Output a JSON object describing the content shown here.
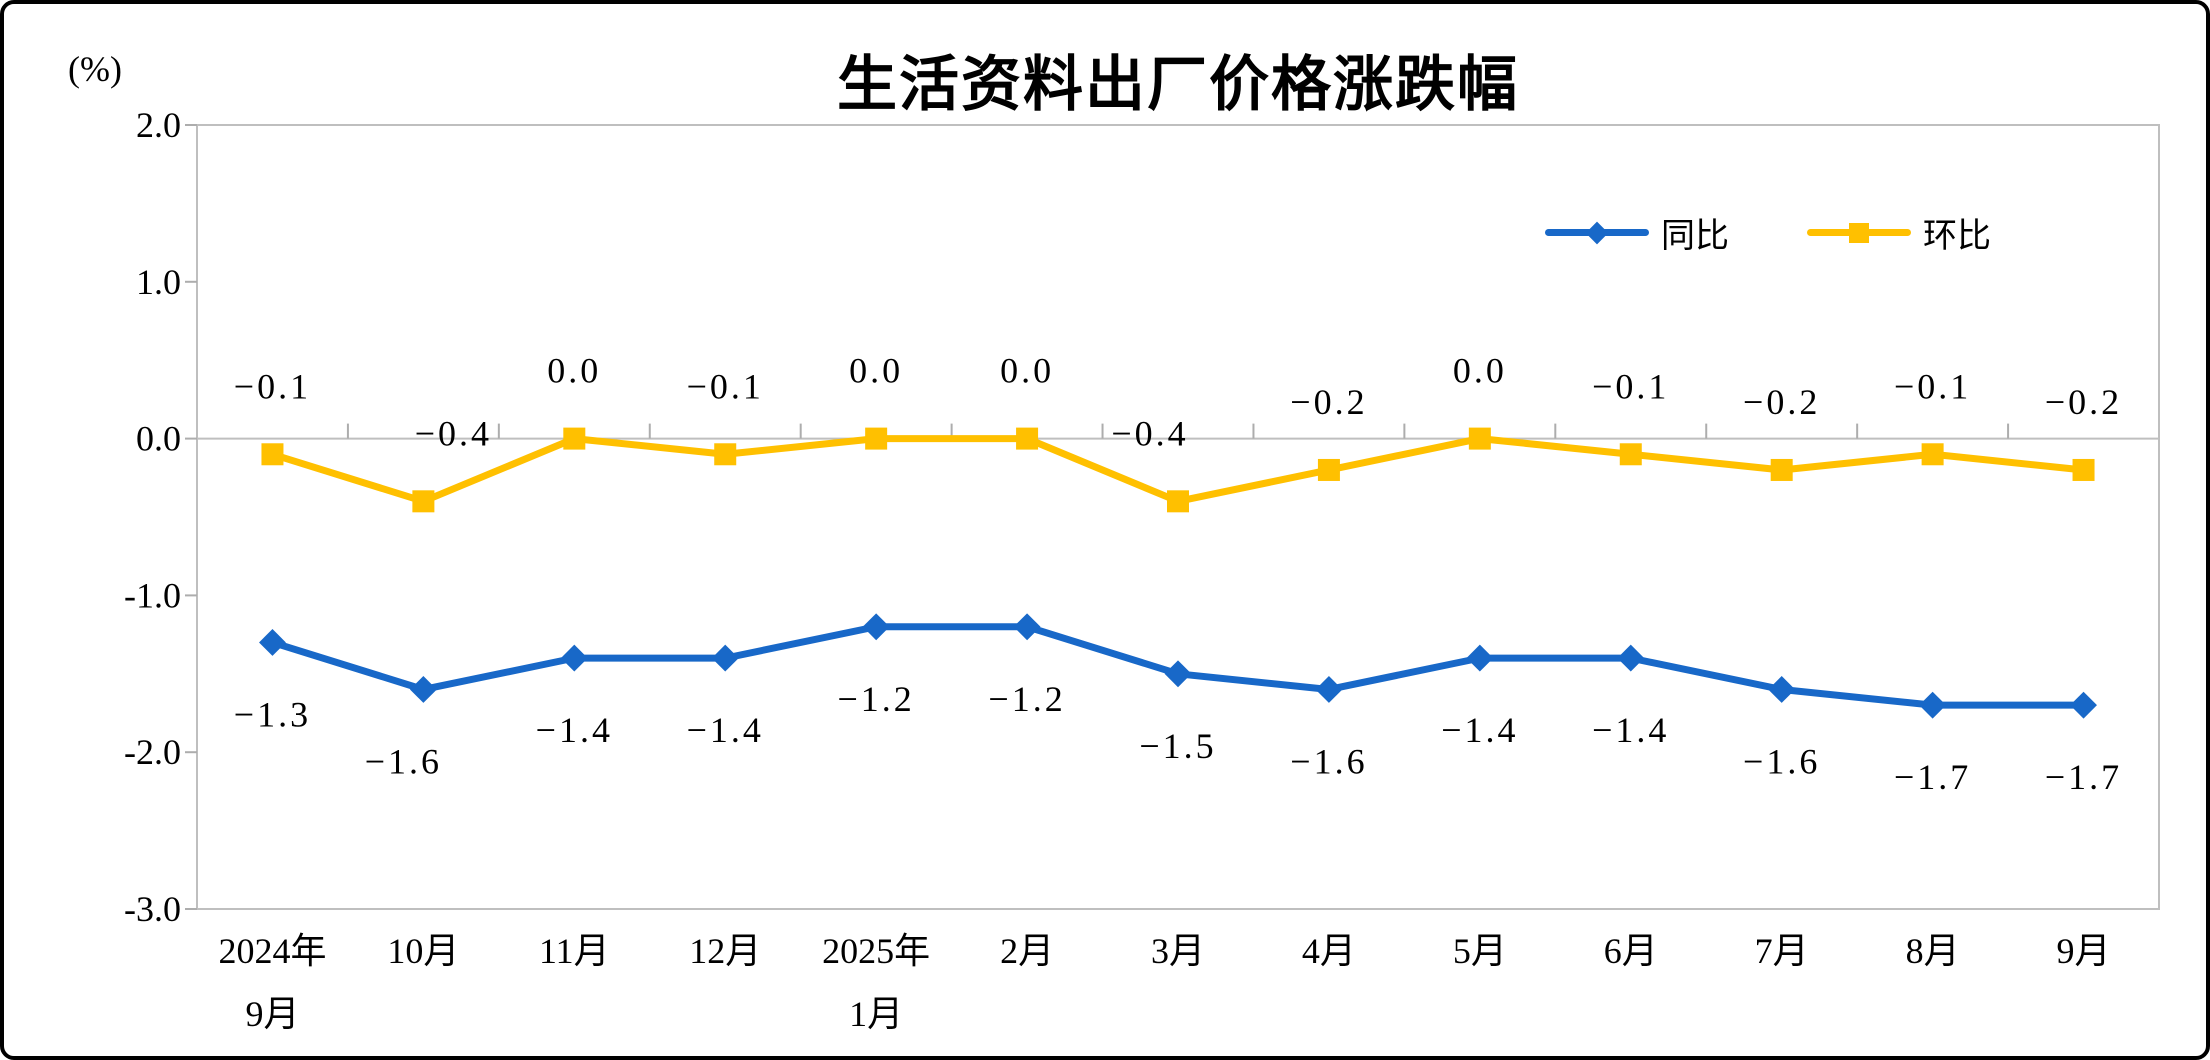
{
  "title": "生活资料出厂价格涨跌幅",
  "unit_label": "(%)",
  "legend": [
    {
      "name": "同比",
      "color": "#1868C8",
      "marker": "diamond"
    },
    {
      "name": "环比",
      "color": "#FFC000",
      "marker": "square"
    }
  ],
  "colors": {
    "axis_line": "#BFBFBF",
    "tick": "#ADADAD",
    "text": "#000000",
    "tongbi_blue": "#1868C8",
    "huanbi_gold": "#FFC000",
    "frame_border": "#000000"
  },
  "chart_data": {
    "type": "line",
    "title": "生活资料出厂价格涨跌幅",
    "ylabel": "(%)",
    "ylim": [
      -3.0,
      2.0
    ],
    "ytick_step": 1.0,
    "ytick_labels": [
      "2.0",
      "1.0",
      "0.0",
      "-1.0",
      "-2.0",
      "-3.0"
    ],
    "categories": [
      [
        "2024年",
        "9月"
      ],
      [
        "10月"
      ],
      [
        "11月"
      ],
      [
        "12月"
      ],
      [
        "2025年",
        "1月"
      ],
      [
        "2月"
      ],
      [
        "3月"
      ],
      [
        "4月"
      ],
      [
        "5月"
      ],
      [
        "6月"
      ],
      [
        "7月"
      ],
      [
        "8月"
      ],
      [
        "9月"
      ]
    ],
    "series": [
      {
        "name": "同比",
        "color": "#1868C8",
        "marker": "diamond",
        "label_position": "below",
        "values": [
          -1.3,
          -1.6,
          -1.4,
          -1.4,
          -1.2,
          -1.2,
          -1.5,
          -1.6,
          -1.4,
          -1.4,
          -1.6,
          -1.7,
          -1.7
        ],
        "label_dx": [
          0,
          -20,
          0,
          0,
          0,
          0,
          0,
          0,
          0,
          0,
          0,
          0,
          0
        ]
      },
      {
        "name": "环比",
        "color": "#FFC000",
        "marker": "square",
        "label_position": "above",
        "values": [
          -0.1,
          -0.4,
          0.0,
          -0.1,
          0.0,
          0.0,
          -0.4,
          -0.2,
          0.0,
          -0.1,
          -0.2,
          -0.1,
          -0.2
        ],
        "label_dx": [
          0,
          30,
          0,
          0,
          0,
          0,
          -28,
          0,
          0,
          0,
          0,
          0,
          0
        ]
      }
    ],
    "legend_position": "top-right",
    "gridlines": "zero-axis-only"
  }
}
